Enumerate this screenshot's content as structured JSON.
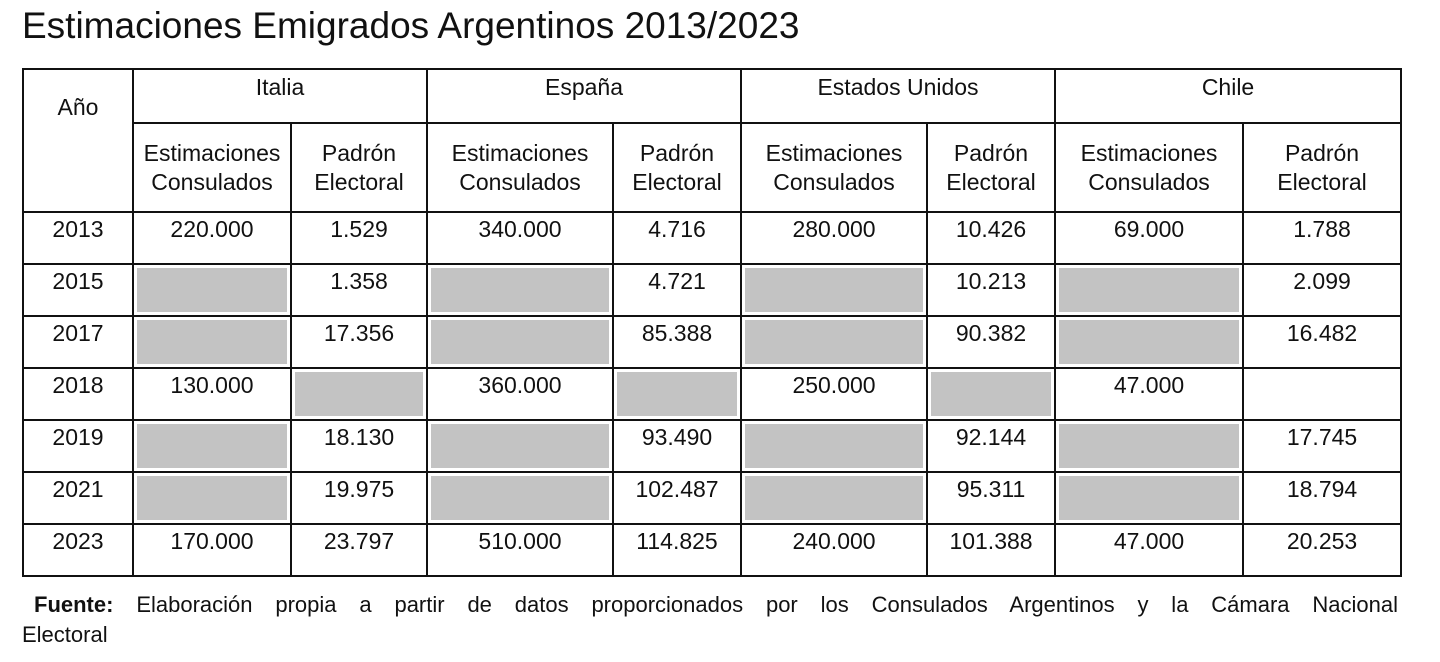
{
  "title": "Estimaciones Emigrados Argentinos 2013/2023",
  "table": {
    "year_header": "Año",
    "countries": [
      "Italia",
      "España",
      "Estados Unidos",
      "Chile"
    ],
    "subheaders": {
      "estimates": [
        "Estimaciones",
        "Consulados"
      ],
      "registry": [
        "Padrón",
        "Electoral"
      ]
    },
    "rows": [
      {
        "year": "2013",
        "cells": [
          {
            "v": "220.000"
          },
          {
            "v": "1.529"
          },
          {
            "v": "340.000"
          },
          {
            "v": "4.716"
          },
          {
            "v": "280.000"
          },
          {
            "v": "10.426"
          },
          {
            "v": "69.000"
          },
          {
            "v": "1.788"
          }
        ]
      },
      {
        "year": "2015",
        "cells": [
          {
            "v": "",
            "shaded": true
          },
          {
            "v": "1.358"
          },
          {
            "v": "",
            "shaded": true
          },
          {
            "v": "4.721"
          },
          {
            "v": "",
            "shaded": true
          },
          {
            "v": "10.213"
          },
          {
            "v": "",
            "shaded": true
          },
          {
            "v": "2.099"
          }
        ]
      },
      {
        "year": "2017",
        "cells": [
          {
            "v": "",
            "shaded": true
          },
          {
            "v": "17.356"
          },
          {
            "v": "",
            "shaded": true
          },
          {
            "v": "85.388"
          },
          {
            "v": "",
            "shaded": true
          },
          {
            "v": "90.382"
          },
          {
            "v": "",
            "shaded": true
          },
          {
            "v": "16.482"
          }
        ]
      },
      {
        "year": "2018",
        "cells": [
          {
            "v": "130.000"
          },
          {
            "v": "",
            "shaded": true
          },
          {
            "v": "360.000"
          },
          {
            "v": "",
            "shaded": true
          },
          {
            "v": "250.000"
          },
          {
            "v": "",
            "shaded": true
          },
          {
            "v": "47.000"
          },
          {
            "v": ""
          }
        ]
      },
      {
        "year": "2019",
        "cells": [
          {
            "v": "",
            "shaded": true
          },
          {
            "v": "18.130"
          },
          {
            "v": "",
            "shaded": true
          },
          {
            "v": "93.490"
          },
          {
            "v": "",
            "shaded": true
          },
          {
            "v": "92.144"
          },
          {
            "v": "",
            "shaded": true
          },
          {
            "v": "17.745"
          }
        ]
      },
      {
        "year": "2021",
        "cells": [
          {
            "v": "",
            "shaded": true
          },
          {
            "v": "19.975"
          },
          {
            "v": "",
            "shaded": true
          },
          {
            "v": "102.487"
          },
          {
            "v": "",
            "shaded": true
          },
          {
            "v": "95.311"
          },
          {
            "v": "",
            "shaded": true
          },
          {
            "v": "18.794"
          }
        ]
      },
      {
        "year": "2023",
        "cells": [
          {
            "v": "170.000"
          },
          {
            "v": "23.797"
          },
          {
            "v": "510.000"
          },
          {
            "v": "114.825"
          },
          {
            "v": "240.000"
          },
          {
            "v": "101.388"
          },
          {
            "v": "47.000"
          },
          {
            "v": "20.253"
          }
        ]
      }
    ]
  },
  "footnote": {
    "label": "Fuente:",
    "text": "Elaboración propia a partir de datos proporcionados por los Consulados Argentinos y la Cámara Nacional",
    "text_line2": "Electoral"
  },
  "colors": {
    "shaded_cell": "#c3c3c3",
    "border": "#111111"
  }
}
